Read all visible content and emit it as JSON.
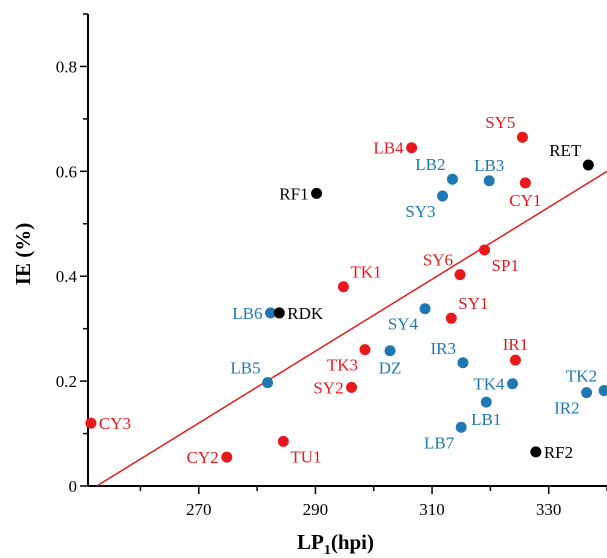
{
  "chart_data": {
    "type": "scatter",
    "title": "",
    "xlabel": "LP",
    "xlabel_sub": "1",
    "xlabel_unit": "(hpi)",
    "ylabel": "IE (%)",
    "xlim": [
      251,
      340
    ],
    "ylim": [
      0,
      0.9
    ],
    "x_ticks": [
      270,
      290,
      310,
      330
    ],
    "y_ticks": [
      0,
      0.2,
      0.4,
      0.6,
      0.8
    ],
    "y_tick_labels": [
      "0",
      "0.2",
      "0.4",
      "0.6",
      "0.8"
    ],
    "grid": false,
    "colors": {
      "red": "#e8191c",
      "blue": "#1f77b4",
      "black": "#000000",
      "line": "#e8191c"
    },
    "regression_line": {
      "x1": 252.5,
      "y1": 0.0,
      "x2": 340,
      "y2": 0.6
    },
    "points": [
      {
        "label": "CY3",
        "x": 251.5,
        "y": 0.12,
        "color": "red",
        "anchor": "right"
      },
      {
        "label": "CY2",
        "x": 274.8,
        "y": 0.055,
        "color": "red",
        "anchor": "left"
      },
      {
        "label": "TU1",
        "x": 284.5,
        "y": 0.085,
        "color": "red",
        "anchor": "below-right"
      },
      {
        "label": "LB5",
        "x": 281.8,
        "y": 0.197,
        "color": "blue",
        "anchor": "above-left"
      },
      {
        "label": "LB6",
        "x": 282.3,
        "y": 0.33,
        "color": "blue",
        "anchor": "left"
      },
      {
        "label": "RDK",
        "x": 283.8,
        "y": 0.33,
        "color": "black",
        "anchor": "right"
      },
      {
        "label": "RF1",
        "x": 290.2,
        "y": 0.558,
        "color": "black",
        "anchor": "left"
      },
      {
        "label": "TK1",
        "x": 294.8,
        "y": 0.38,
        "color": "red",
        "anchor": "above-right"
      },
      {
        "label": "SY2",
        "x": 296.2,
        "y": 0.188,
        "color": "red",
        "anchor": "left"
      },
      {
        "label": "TK3",
        "x": 298.5,
        "y": 0.26,
        "color": "red",
        "anchor": "below-left"
      },
      {
        "label": "DZ",
        "x": 302.8,
        "y": 0.258,
        "color": "blue",
        "anchor": "below"
      },
      {
        "label": "LB4",
        "x": 306.5,
        "y": 0.645,
        "color": "red",
        "anchor": "left"
      },
      {
        "label": "SY4",
        "x": 308.8,
        "y": 0.338,
        "color": "blue",
        "anchor": "below-left"
      },
      {
        "label": "SY3",
        "x": 311.8,
        "y": 0.553,
        "color": "blue",
        "anchor": "below-left"
      },
      {
        "label": "LB2",
        "x": 313.5,
        "y": 0.585,
        "color": "blue",
        "anchor": "above-left"
      },
      {
        "label": "SY1",
        "x": 313.3,
        "y": 0.32,
        "color": "red",
        "anchor": "above-right"
      },
      {
        "label": "SY6",
        "x": 314.8,
        "y": 0.403,
        "color": "red",
        "anchor": "above-left"
      },
      {
        "label": "IR3",
        "x": 315.3,
        "y": 0.235,
        "color": "blue",
        "anchor": "above-left"
      },
      {
        "label": "LB7",
        "x": 315.0,
        "y": 0.112,
        "color": "blue",
        "anchor": "below-left"
      },
      {
        "label": "SP1",
        "x": 319.0,
        "y": 0.45,
        "color": "red",
        "anchor": "below-right"
      },
      {
        "label": "LB1",
        "x": 319.3,
        "y": 0.16,
        "color": "blue",
        "anchor": "below"
      },
      {
        "label": "LB3",
        "x": 319.8,
        "y": 0.582,
        "color": "blue",
        "anchor": "above"
      },
      {
        "label": "TK4",
        "x": 323.8,
        "y": 0.195,
        "color": "blue",
        "anchor": "left"
      },
      {
        "label": "IR1",
        "x": 324.3,
        "y": 0.24,
        "color": "red",
        "anchor": "above"
      },
      {
        "label": "SY5",
        "x": 325.5,
        "y": 0.665,
        "color": "red",
        "anchor": "above-left"
      },
      {
        "label": "CY1",
        "x": 326.0,
        "y": 0.578,
        "color": "red",
        "anchor": "below"
      },
      {
        "label": "RF2",
        "x": 327.8,
        "y": 0.065,
        "color": "black",
        "anchor": "right"
      },
      {
        "label": "RET",
        "x": 336.8,
        "y": 0.612,
        "color": "black",
        "anchor": "above-left"
      },
      {
        "label": "IR2",
        "x": 336.5,
        "y": 0.178,
        "color": "blue",
        "anchor": "below-left"
      },
      {
        "label": "TK2",
        "x": 339.5,
        "y": 0.182,
        "color": "blue",
        "anchor": "above-left"
      }
    ]
  }
}
